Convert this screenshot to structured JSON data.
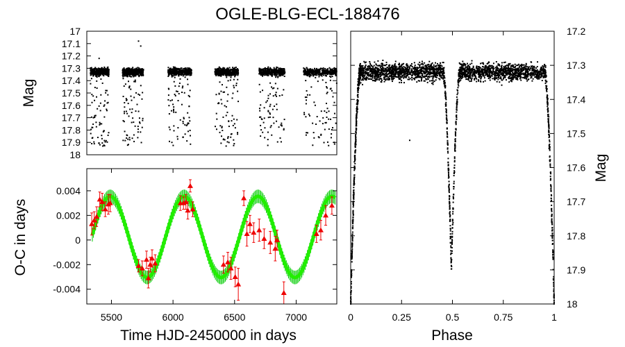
{
  "title": "OGLE-BLG-ECL-188476",
  "chart_data": [
    {
      "id": "lightcurve_time",
      "type": "scatter",
      "ylabel": "Mag",
      "xlim": [
        5300,
        7330
      ],
      "ylim": [
        17,
        18
      ],
      "y_inverted": true,
      "yticks": [
        "17",
        "17.1",
        "17.2",
        "17.3",
        "17.4",
        "17.5",
        "17.6",
        "17.7",
        "17.8",
        "17.9",
        "18"
      ],
      "ytick_values": [
        17,
        17.1,
        17.2,
        17.3,
        17.4,
        17.5,
        17.6,
        17.7,
        17.8,
        17.9,
        18
      ],
      "seasons": [
        {
          "start": 5330,
          "end": 5480
        },
        {
          "start": 5590,
          "end": 5760
        },
        {
          "start": 5960,
          "end": 6150
        },
        {
          "start": 6340,
          "end": 6530
        },
        {
          "start": 6700,
          "end": 6910
        },
        {
          "start": 7060,
          "end": 7330
        }
      ],
      "baseline_mag": 17.33,
      "eclipse_depth_max_mag": 17.93,
      "outliers": [
        {
          "x": 5720,
          "y": 17.08
        },
        {
          "x": 5738,
          "y": 17.12
        },
        {
          "x": 5400,
          "y": 17.22
        }
      ],
      "color": "#000000"
    },
    {
      "id": "o_minus_c",
      "type": "scatter_with_errorbars_and_fit",
      "xlabel": "Time HJD-2450000 in days",
      "ylabel": "O-C in days",
      "xlim": [
        5300,
        7330
      ],
      "ylim": [
        -0.0052,
        0.0058
      ],
      "xticks": [
        "5500",
        "6000",
        "6500",
        "7000"
      ],
      "xtick_values": [
        5500,
        6000,
        6500,
        7000
      ],
      "yticks": [
        "0.004",
        "0.002",
        "0",
        "-0.002",
        "-0.004"
      ],
      "ytick_values": [
        0.004,
        0.002,
        0,
        -0.002,
        -0.004
      ],
      "points_x": [
        5340,
        5360,
        5380,
        5405,
        5425,
        5450,
        5475,
        5490,
        5720,
        5750,
        5785,
        5800,
        5815,
        5830,
        5855,
        6060,
        6085,
        6105,
        6120,
        6140,
        6160,
        6410,
        6445,
        6470,
        6505,
        6530,
        6575,
        6600,
        6625,
        6655,
        6700,
        6740,
        6790,
        6830,
        6845,
        6900,
        7165,
        7200,
        7240,
        7290
      ],
      "points_y": [
        0.0013,
        0.0016,
        0.0019,
        0.0033,
        0.0031,
        0.0025,
        0.0029,
        0.003,
        -0.0021,
        -0.0023,
        -0.0016,
        -0.0031,
        -0.002,
        -0.0015,
        -0.0019,
        0.003,
        0.003,
        0.0031,
        0.0024,
        0.0044,
        0.0025,
        -0.002,
        -0.0018,
        -0.0023,
        -0.003,
        -0.0036,
        0.0034,
        0.0005,
        0.0013,
        0.0006,
        0.0008,
        0.0001,
        -0.0002,
        -0.0007,
        0.0,
        -0.0043,
        0.0005,
        0.0008,
        0.002,
        0.0028
      ],
      "errors": [
        0.0009,
        0.0007,
        0.0008,
        0.0006,
        0.0007,
        0.0006,
        0.0008,
        0.0007,
        0.0005,
        0.0006,
        0.0007,
        0.0008,
        0.0006,
        0.0007,
        0.0007,
        0.0006,
        0.0005,
        0.0006,
        0.0007,
        0.0005,
        0.0006,
        0.0007,
        0.0008,
        0.0009,
        0.0008,
        0.0013,
        0.0006,
        0.001,
        0.0007,
        0.0008,
        0.0009,
        0.0008,
        0.0009,
        0.001,
        0.0008,
        0.0009,
        0.0007,
        0.0008,
        0.0008,
        0.0007
      ],
      "point_color": "#ee0000",
      "fit": {
        "model": "sinusoid",
        "amplitude": 0.0033,
        "offset": 0.00025,
        "period_days": 600,
        "peak_time": 5490
      },
      "fit_color": "#22ee00",
      "fit_error_color": "#00cc00"
    },
    {
      "id": "phase_curve",
      "type": "scatter",
      "xlabel": "Phase",
      "ylabel": "Mag",
      "xlim": [
        0,
        1
      ],
      "ylim": [
        17.2,
        18
      ],
      "y_inverted": true,
      "xticks": [
        "0",
        "0.25",
        "0.5",
        "0.75",
        "1"
      ],
      "xtick_values": [
        0,
        0.25,
        0.5,
        0.75,
        1
      ],
      "yticks": [
        "17.2",
        "17.3",
        "17.4",
        "17.5",
        "17.6",
        "17.7",
        "17.8",
        "17.9",
        "18"
      ],
      "ytick_values": [
        17.2,
        17.3,
        17.4,
        17.5,
        17.6,
        17.7,
        17.8,
        17.9,
        18
      ],
      "baseline_mag": 17.32,
      "primary_eclipse": {
        "phase": 0.0,
        "depth_mag": 18.0
      },
      "secondary_eclipse": {
        "phase": 0.495,
        "depth_mag": 17.9
      },
      "outliers": [
        {
          "x": 0.29,
          "y": 17.52
        }
      ],
      "color": "#000000"
    }
  ]
}
